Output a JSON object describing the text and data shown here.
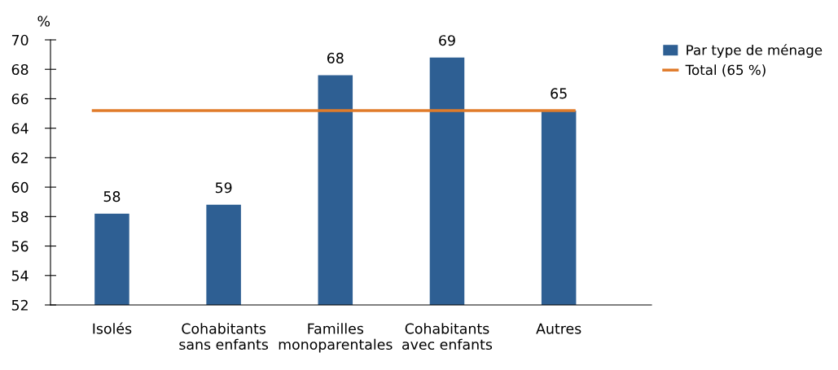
{
  "chart_data": {
    "type": "bar",
    "ylabel": "%",
    "categories": [
      "Isolés",
      "Cohabitants\nsans enfants",
      "Familles\nmonoparentales",
      "Cohabitants\navec enfants",
      "Autres"
    ],
    "series": [
      {
        "name": "Par type de ménage",
        "color": "#2e5f93",
        "values": [
          58.2,
          58.8,
          67.6,
          68.8,
          65.2
        ],
        "value_labels": [
          "58",
          "59",
          "68",
          "69",
          "65"
        ]
      }
    ],
    "ref_lines": [
      {
        "axis": "y",
        "value": 65.2,
        "label": "Total (65 %)",
        "color": "#e07b2a"
      }
    ],
    "ylim": [
      52,
      70
    ],
    "yticks": [
      52,
      54,
      56,
      58,
      60,
      62,
      64,
      66,
      68,
      70
    ],
    "grid": false,
    "legend": "top right"
  }
}
